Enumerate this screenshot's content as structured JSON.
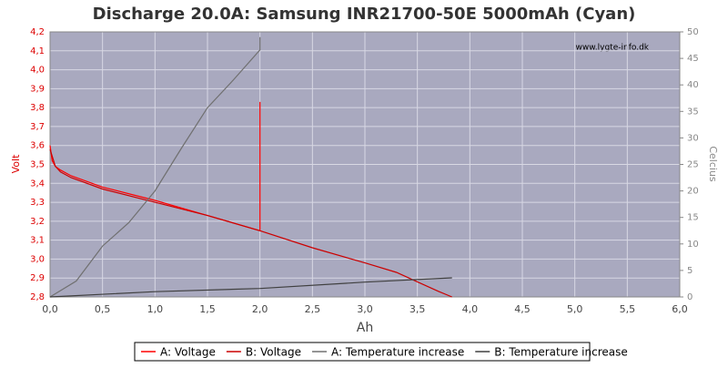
{
  "chart_data": {
    "type": "line",
    "title": "Discharge 20.0A: Samsung INR21700-50E 5000mAh (Cyan)",
    "annotation": "www.lygte-info.dk",
    "xlabel": "Ah",
    "ylabel": "Volt",
    "y2label": "Celcius",
    "xlim": [
      0,
      6
    ],
    "ylim": [
      2.8,
      4.2
    ],
    "y2lim": [
      0,
      50
    ],
    "grid": true,
    "xticks": [
      {
        "value": 0,
        "label": "0,0"
      },
      {
        "value": 0.5,
        "label": "0,5"
      },
      {
        "value": 1,
        "label": "1,0"
      },
      {
        "value": 1.5,
        "label": "1,5"
      },
      {
        "value": 2,
        "label": "2,0"
      },
      {
        "value": 2.5,
        "label": "2,5"
      },
      {
        "value": 3,
        "label": "3,0"
      },
      {
        "value": 3.5,
        "label": "3,5"
      },
      {
        "value": 4,
        "label": "4,0"
      },
      {
        "value": 4.5,
        "label": "4,5"
      },
      {
        "value": 5,
        "label": "5,0"
      },
      {
        "value": 5.5,
        "label": "5,5"
      },
      {
        "value": 6,
        "label": "6,0"
      }
    ],
    "yticks": [
      {
        "value": 2.8,
        "label": "2,8"
      },
      {
        "value": 2.9,
        "label": "2,9"
      },
      {
        "value": 3,
        "label": "3,0"
      },
      {
        "value": 3.1,
        "label": "3,1"
      },
      {
        "value": 3.2,
        "label": "3,2"
      },
      {
        "value": 3.3,
        "label": "3,3"
      },
      {
        "value": 3.4,
        "label": "3,4"
      },
      {
        "value": 3.5,
        "label": "3,5"
      },
      {
        "value": 3.6,
        "label": "3,6"
      },
      {
        "value": 3.7,
        "label": "3,7"
      },
      {
        "value": 3.8,
        "label": "3,8"
      },
      {
        "value": 3.9,
        "label": "3,9"
      },
      {
        "value": 4,
        "label": "4,0"
      },
      {
        "value": 4.1,
        "label": "4,1"
      },
      {
        "value": 4.2,
        "label": "4,2"
      }
    ],
    "y2ticks": [
      0,
      5,
      10,
      15,
      20,
      25,
      30,
      35,
      40,
      45,
      50
    ],
    "series": [
      {
        "name": "A: Voltage",
        "color": "#ff0000",
        "x": [
          0,
          0.02,
          0.05,
          0.1,
          0.2,
          0.5,
          1,
          1.5,
          2,
          2
        ],
        "values": [
          3.6,
          3.52,
          3.49,
          3.47,
          3.44,
          3.38,
          3.31,
          3.23,
          3.15,
          3.83
        ]
      },
      {
        "name": "B: Voltage",
        "color": "#cc0000",
        "x": [
          0,
          0.05,
          0.1,
          0.2,
          0.5,
          1,
          1.5,
          2,
          2.5,
          3,
          3.3,
          3.5,
          3.7,
          3.83
        ],
        "values": [
          3.58,
          3.49,
          3.46,
          3.43,
          3.37,
          3.3,
          3.23,
          3.15,
          3.06,
          2.98,
          2.93,
          2.88,
          2.83,
          2.8
        ]
      },
      {
        "name": "A: Temperature increase",
        "color": "#707070",
        "axis": "y2",
        "x": [
          0,
          0.25,
          0.5,
          0.75,
          1,
          1.25,
          1.5,
          1.75,
          2,
          2
        ],
        "values": [
          0,
          3,
          9.6,
          14,
          20,
          28,
          35.7,
          41,
          46.6,
          49
        ]
      },
      {
        "name": "B: Temperature increase",
        "color": "#404040",
        "axis": "y2",
        "x": [
          0,
          1,
          2,
          3,
          3.83
        ],
        "values": [
          0,
          1,
          1.6,
          2.8,
          3.6
        ]
      }
    ]
  }
}
